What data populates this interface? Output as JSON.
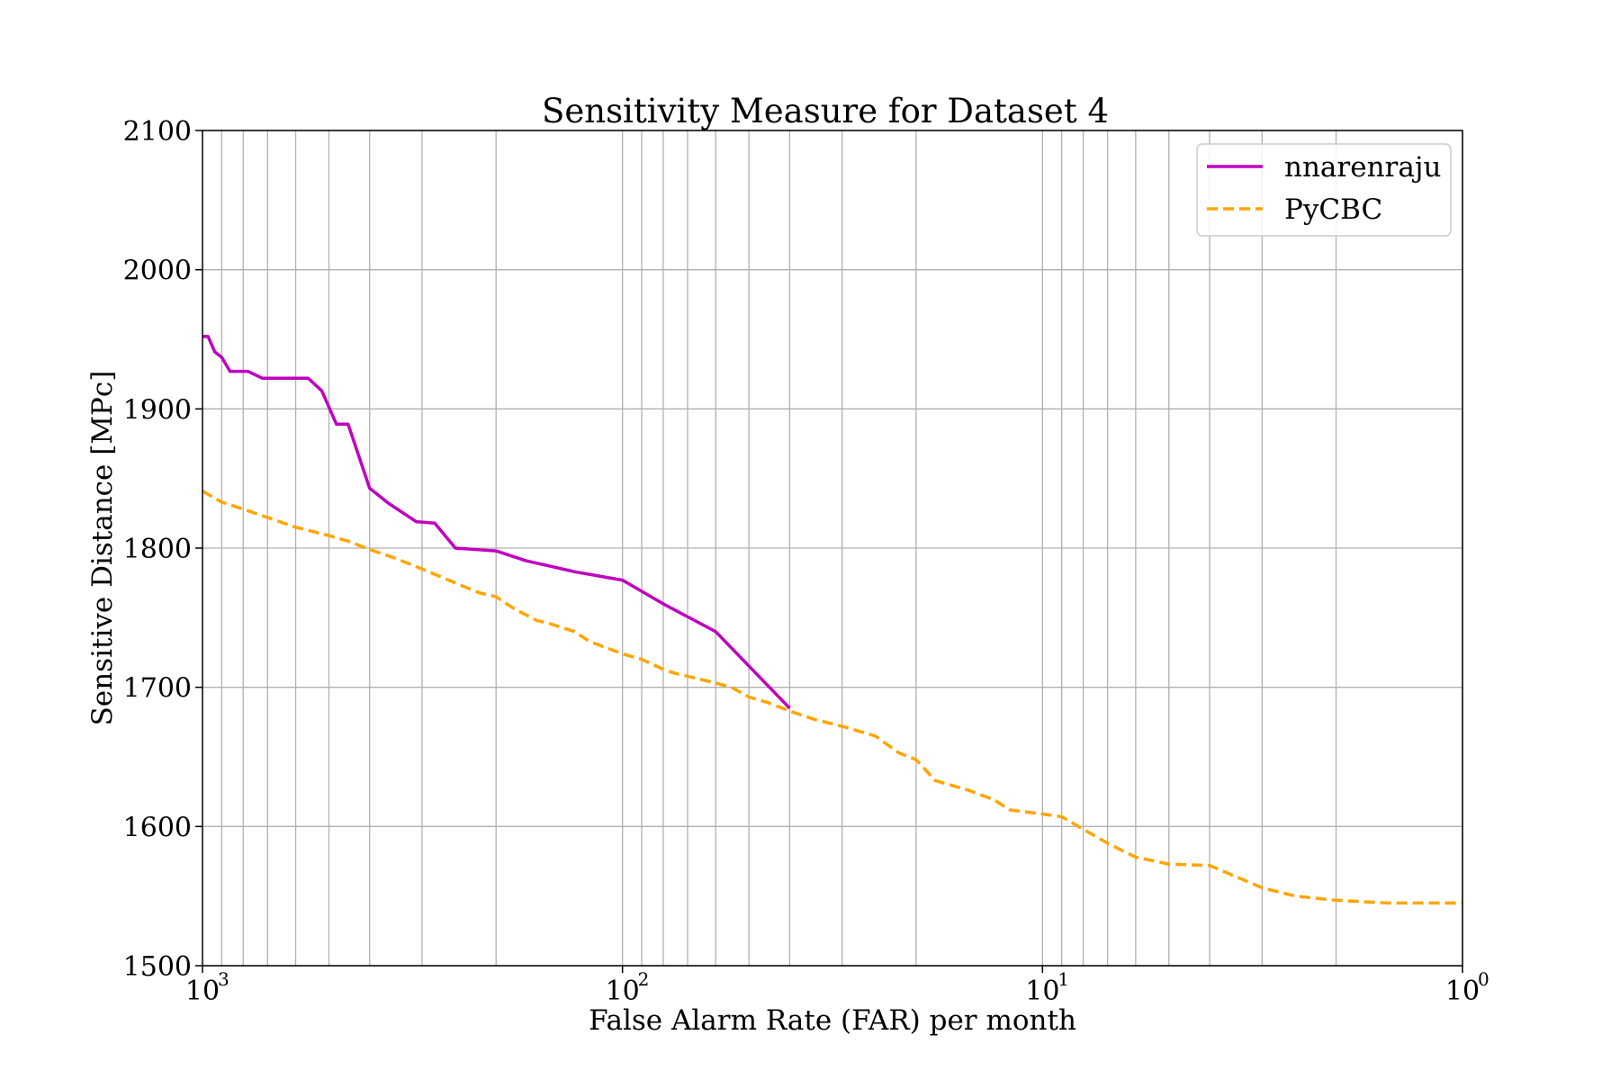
{
  "chart_data": {
    "type": "line",
    "title": "Sensitivity Measure for Dataset 4",
    "xlabel": "False Alarm Rate (FAR) per month",
    "ylabel": "Sensitive Distance [MPc]",
    "xscale": "log",
    "x_reversed": true,
    "xlim": [
      1000,
      1
    ],
    "ylim": [
      1500,
      2100
    ],
    "grid": true,
    "legend_position": "top-right",
    "x_ticks": [
      {
        "base": "10",
        "exp": "3",
        "value": 1000
      },
      {
        "base": "10",
        "exp": "2",
        "value": 100
      },
      {
        "base": "10",
        "exp": "1",
        "value": 10
      },
      {
        "base": "10",
        "exp": "0",
        "value": 1
      }
    ],
    "y_ticks": [
      1500,
      1600,
      1700,
      1800,
      1900,
      2000,
      2100
    ],
    "y_tick_labels": [
      "1500",
      "1600",
      "1700",
      "1800",
      "1900",
      "2000",
      "2100"
    ],
    "series": [
      {
        "name": "nnarenraju",
        "color": "#bf00bf",
        "style": "solid",
        "x": [
          1000,
          970,
          935,
          900,
          860,
          780,
          720,
          660,
          560,
          520,
          480,
          450,
          400,
          360,
          310,
          280,
          250,
          200,
          170,
          130,
          100,
          80,
          60,
          40
        ],
        "y": [
          1952,
          1952,
          1941,
          1937,
          1927,
          1927,
          1922,
          1922,
          1922,
          1913,
          1889,
          1889,
          1843,
          1832,
          1819,
          1818,
          1800,
          1798,
          1791,
          1783,
          1777,
          1760,
          1740,
          1685
        ]
      },
      {
        "name": "PyCBC",
        "color": "#ffa500",
        "style": "dashed",
        "x": [
          1000,
          900,
          800,
          700,
          600,
          500,
          450,
          400,
          350,
          300,
          250,
          220,
          200,
          180,
          160,
          150,
          130,
          120,
          100,
          90,
          80,
          75,
          70,
          60,
          55,
          50,
          45,
          40,
          35,
          30,
          25,
          22,
          20,
          18,
          15,
          13,
          12,
          10,
          9,
          8,
          7,
          6,
          5,
          4,
          3,
          2.5,
          2,
          1.5,
          1
        ],
        "y": [
          1841,
          1833,
          1828,
          1822,
          1815,
          1809,
          1805,
          1799,
          1793,
          1785,
          1775,
          1768,
          1765,
          1756,
          1748,
          1746,
          1740,
          1733,
          1724,
          1720,
          1713,
          1710,
          1708,
          1703,
          1700,
          1693,
          1689,
          1683,
          1677,
          1672,
          1665,
          1653,
          1648,
          1633,
          1626,
          1619,
          1612,
          1609,
          1607,
          1598,
          1588,
          1578,
          1573,
          1572,
          1556,
          1550,
          1547,
          1545,
          1545
        ]
      }
    ]
  }
}
